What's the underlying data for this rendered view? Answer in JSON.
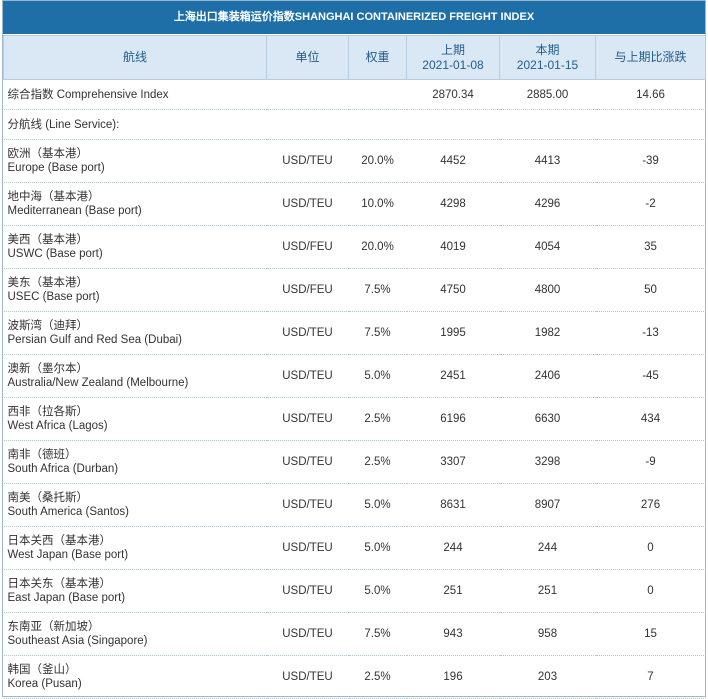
{
  "title": "上海出口集装箱运价指数SHANGHAI CONTAINERIZED FREIGHT INDEX",
  "header": {
    "route": "航线",
    "unit": "单位",
    "weight": "权重",
    "prev_label": "上期",
    "prev_date": "2021-01-08",
    "curr_label": "本期",
    "curr_date": "2021-01-15",
    "change": "与上期比涨跌"
  },
  "composite": {
    "label": "综合指数 Comprehensive Index",
    "prev": "2870.34",
    "curr": "2885.00",
    "change": "14.66"
  },
  "section_label": "分航线 (Line Service):",
  "routes": [
    {
      "cn": "欧洲（基本港）",
      "en": "Europe (Base port)",
      "unit": "USD/TEU",
      "weight": "20.0%",
      "prev": "4452",
      "curr": "4413",
      "change": "-39"
    },
    {
      "cn": "地中海（基本港）",
      "en": "Mediterranean (Base port)",
      "unit": "USD/TEU",
      "weight": "10.0%",
      "prev": "4298",
      "curr": "4296",
      "change": "-2"
    },
    {
      "cn": "美西（基本港）",
      "en": "USWC (Base port)",
      "unit": "USD/FEU",
      "weight": "20.0%",
      "prev": "4019",
      "curr": "4054",
      "change": "35"
    },
    {
      "cn": "美东（基本港）",
      "en": "USEC (Base port)",
      "unit": "USD/FEU",
      "weight": "7.5%",
      "prev": "4750",
      "curr": "4800",
      "change": "50"
    },
    {
      "cn": "波斯湾（迪拜）",
      "en": "Persian Gulf and Red Sea (Dubai)",
      "unit": "USD/TEU",
      "weight": "7.5%",
      "prev": "1995",
      "curr": "1982",
      "change": "-13"
    },
    {
      "cn": "澳新（墨尔本）",
      "en": "Australia/New Zealand (Melbourne)",
      "unit": "USD/TEU",
      "weight": "5.0%",
      "prev": "2451",
      "curr": "2406",
      "change": "-45"
    },
    {
      "cn": "西非（拉各斯）",
      "en": "West Africa (Lagos)",
      "unit": "USD/TEU",
      "weight": "2.5%",
      "prev": "6196",
      "curr": "6630",
      "change": "434"
    },
    {
      "cn": "南非（德班）",
      "en": "South Africa (Durban)",
      "unit": "USD/TEU",
      "weight": "2.5%",
      "prev": "3307",
      "curr": "3298",
      "change": "-9"
    },
    {
      "cn": "南美（桑托斯）",
      "en": "South America (Santos)",
      "unit": "USD/TEU",
      "weight": "5.0%",
      "prev": "8631",
      "curr": "8907",
      "change": "276"
    },
    {
      "cn": "日本关西（基本港）",
      "en": "West Japan (Base port)",
      "unit": "USD/TEU",
      "weight": "5.0%",
      "prev": "244",
      "curr": "244",
      "change": "0"
    },
    {
      "cn": "日本关东（基本港）",
      "en": "East Japan (Base port)",
      "unit": "USD/TEU",
      "weight": "5.0%",
      "prev": "251",
      "curr": "251",
      "change": "0"
    },
    {
      "cn": "东南亚（新加坡）",
      "en": "Southeast Asia (Singapore)",
      "unit": "USD/TEU",
      "weight": "7.5%",
      "prev": "943",
      "curr": "958",
      "change": "15"
    },
    {
      "cn": "韩国（釜山）",
      "en": "Korea (Pusan)",
      "unit": "USD/TEU",
      "weight": "2.5%",
      "prev": "196",
      "curr": "203",
      "change": "7"
    }
  ]
}
